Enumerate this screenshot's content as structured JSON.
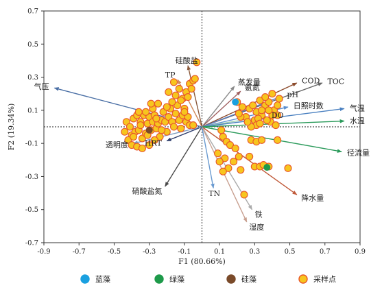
{
  "chart_data": {
    "type": "scatter",
    "title": "",
    "xlabel": "F1 (80.66%)",
    "ylabel": "F2 (19.34%)",
    "xlim": [
      -0.9,
      0.9
    ],
    "ylim": [
      -0.7,
      0.7
    ],
    "xticks": [
      "-0.9",
      "-0.7",
      "-0.5",
      "-0.3",
      "-0.1",
      "0.1",
      "0.3",
      "0.5",
      "0.7",
      "0.9"
    ],
    "xtick_values": [
      -0.9,
      -0.7,
      -0.5,
      -0.3,
      -0.1,
      0.1,
      0.3,
      0.5,
      0.7,
      0.9
    ],
    "yticks": [
      "0.7",
      "0.5",
      "0.3",
      "0.1",
      "-0.1",
      "-0.3",
      "-0.5",
      "-0.7"
    ],
    "ytick_values": [
      0.7,
      0.5,
      0.3,
      0.1,
      -0.1,
      -0.3,
      -0.5,
      -0.7
    ],
    "grid": false,
    "reference_lines": {
      "x": 0,
      "y": 0,
      "style": "dotted"
    },
    "vectors": [
      {
        "label": "气压",
        "x": -0.84,
        "y": 0.235,
        "color": "#4a6fa5"
      },
      {
        "label": "TP",
        "x": -0.138,
        "y": 0.285,
        "color": "#d0895a"
      },
      {
        "label": "硅酸盐",
        "x": -0.08,
        "y": 0.37,
        "color": "#8b5a3c"
      },
      {
        "label": "蒸发量",
        "x": 0.185,
        "y": 0.245,
        "color": "#8a8a8a"
      },
      {
        "label": "氨氮",
        "x": 0.22,
        "y": 0.215,
        "color": "#a06060"
      },
      {
        "label": "COD",
        "x": 0.54,
        "y": 0.265,
        "color": "#8b4a2b"
      },
      {
        "label": "TOC",
        "x": 0.685,
        "y": 0.265,
        "color": "#666666"
      },
      {
        "label": "pH",
        "x": 0.455,
        "y": 0.185,
        "color": "#5a7ec0"
      },
      {
        "label": "日照时数",
        "x": 0.49,
        "y": 0.12,
        "color": "#5a8ed0"
      },
      {
        "label": "DO",
        "x": 0.365,
        "y": 0.065,
        "color": "#a0d0b0"
      },
      {
        "label": "气温",
        "x": 0.81,
        "y": 0.11,
        "color": "#4a80c0"
      },
      {
        "label": "水温",
        "x": 0.81,
        "y": 0.035,
        "color": "#2a9a5a"
      },
      {
        "label": "径流量",
        "x": 0.795,
        "y": -0.15,
        "color": "#2a9a5a"
      },
      {
        "label": "降水量",
        "x": 0.54,
        "y": -0.41,
        "color": "#c05a3a"
      },
      {
        "label": "铁",
        "x": 0.285,
        "y": -0.5,
        "color": "#aaaaaa"
      },
      {
        "label": "湿度",
        "x": 0.255,
        "y": -0.575,
        "color": "#c8a090"
      },
      {
        "label": "TN",
        "x": 0.065,
        "y": -0.37,
        "color": "#6a9ad0"
      },
      {
        "label": "硝酸盐氮",
        "x": -0.21,
        "y": -0.36,
        "color": "#4a4a4a"
      },
      {
        "label": "HRT",
        "x": -0.2,
        "y": -0.085,
        "color": "#2a3a6a"
      },
      {
        "label": "透明度",
        "x": -0.39,
        "y": -0.1,
        "color": "#7a9ac0"
      }
    ],
    "sample_points": [
      [
        -0.43,
        0.03
      ],
      [
        -0.41,
        0.0
      ],
      [
        -0.4,
        -0.05
      ],
      [
        -0.39,
        0.05
      ],
      [
        -0.38,
        -0.03
      ],
      [
        -0.37,
        0.07
      ],
      [
        -0.36,
        -0.02
      ],
      [
        -0.35,
        0.03
      ],
      [
        -0.34,
        -0.07
      ],
      [
        -0.33,
        0.07
      ],
      [
        -0.32,
        -0.04
      ],
      [
        -0.31,
        0.02
      ],
      [
        -0.3,
        0.06
      ],
      [
        -0.29,
        -0.02
      ],
      [
        -0.28,
        0.03
      ],
      [
        -0.27,
        0.07
      ],
      [
        -0.26,
        -0.01
      ],
      [
        -0.25,
        0.02
      ],
      [
        -0.24,
        -0.06
      ],
      [
        -0.23,
        0.04
      ],
      [
        -0.22,
        0.09
      ],
      [
        -0.21,
        0.03
      ],
      [
        -0.2,
        -0.03
      ],
      [
        -0.19,
        0.06
      ],
      [
        -0.18,
        0.11
      ],
      [
        -0.17,
        0.03
      ],
      [
        -0.16,
        0.0
      ],
      [
        -0.15,
        0.08
      ],
      [
        -0.14,
        0.13
      ],
      [
        -0.13,
        0.04
      ],
      [
        -0.12,
        -0.01
      ],
      [
        -0.11,
        0.07
      ],
      [
        -0.1,
        0.11
      ],
      [
        -0.09,
        0.03
      ],
      [
        -0.08,
        0.06
      ],
      [
        -0.07,
        0.01
      ],
      [
        -0.42,
        -0.08
      ],
      [
        -0.4,
        -0.11
      ],
      [
        -0.37,
        -0.12
      ],
      [
        -0.34,
        -0.13
      ],
      [
        -0.3,
        -0.11
      ],
      [
        -0.27,
        -0.08
      ],
      [
        -0.44,
        -0.03
      ],
      [
        -0.39,
        -0.06
      ],
      [
        -0.35,
        0.01
      ],
      [
        -0.32,
        0.09
      ],
      [
        -0.28,
        0.11
      ],
      [
        -0.25,
        0.14
      ],
      [
        -0.23,
        -0.02
      ],
      [
        -0.2,
        0.12
      ],
      [
        -0.17,
        0.15
      ],
      [
        -0.15,
        0.19
      ],
      [
        -0.13,
        0.23
      ],
      [
        -0.11,
        0.17
      ],
      [
        -0.09,
        0.21
      ],
      [
        -0.07,
        0.26
      ],
      [
        -0.05,
        0.28
      ],
      [
        -0.04,
        0.29
      ],
      [
        -0.06,
        0.23
      ],
      [
        -0.08,
        0.18
      ],
      [
        -0.16,
        0.27
      ],
      [
        -0.12,
        0.16
      ],
      [
        -0.19,
        0.21
      ],
      [
        -0.1,
        0.09
      ],
      [
        -0.03,
        0.39
      ],
      [
        -0.05,
        0.01
      ],
      [
        -0.31,
        -0.05
      ],
      [
        -0.29,
        0.14
      ],
      [
        -0.36,
        0.09
      ],
      [
        -0.26,
        0.05
      ],
      [
        0.27,
        0.11
      ],
      [
        0.29,
        0.13
      ],
      [
        0.31,
        0.09
      ],
      [
        0.33,
        0.16
      ],
      [
        0.36,
        0.13
      ],
      [
        0.39,
        0.03
      ],
      [
        0.42,
        0.01
      ],
      [
        0.43,
        0.07
      ],
      [
        0.41,
        0.1
      ],
      [
        0.38,
        0.15
      ],
      [
        0.44,
        0.17
      ],
      [
        0.37,
        0.04
      ],
      [
        0.4,
        0.07
      ],
      [
        0.34,
        0.07
      ],
      [
        0.3,
        0.04
      ],
      [
        0.2,
        0.15
      ],
      [
        0.23,
        0.12
      ],
      [
        0.25,
        0.06
      ],
      [
        0.36,
        0.18
      ],
      [
        0.43,
        0.13
      ],
      [
        0.22,
        0.06
      ],
      [
        0.21,
        0.08
      ],
      [
        0.31,
        0.01
      ],
      [
        0.28,
        0.0
      ],
      [
        0.32,
        0.05
      ],
      [
        0.4,
        0.2
      ],
      [
        0.26,
        0.03
      ],
      [
        0.33,
        0.02
      ],
      [
        0.34,
        0.1
      ],
      [
        0.38,
        0.1
      ],
      [
        0.11,
        -0.02
      ],
      [
        0.12,
        -0.06
      ],
      [
        0.14,
        -0.09
      ],
      [
        0.16,
        -0.11
      ],
      [
        0.19,
        -0.13
      ],
      [
        0.21,
        -0.18
      ],
      [
        0.15,
        -0.25
      ],
      [
        0.13,
        -0.19
      ],
      [
        0.1,
        -0.21
      ],
      [
        0.12,
        -0.27
      ],
      [
        0.22,
        -0.26
      ],
      [
        0.28,
        -0.08
      ],
      [
        0.31,
        -0.09
      ],
      [
        0.34,
        -0.08
      ],
      [
        0.43,
        -0.08
      ],
      [
        0.3,
        -0.24
      ],
      [
        0.33,
        -0.24
      ],
      [
        0.35,
        -0.23
      ],
      [
        0.38,
        -0.24
      ],
      [
        0.49,
        -0.25
      ],
      [
        0.24,
        -0.41
      ],
      [
        0.27,
        -0.18
      ],
      [
        0.09,
        -0.16
      ],
      [
        0.18,
        -0.21
      ]
    ],
    "marked_points": [
      {
        "kind": "蓝藻",
        "x": 0.19,
        "y": 0.15,
        "color": "#1aa0e0"
      },
      {
        "kind": "绿藻",
        "x": 0.37,
        "y": -0.245,
        "color": "#1e9a4a"
      },
      {
        "kind": "硅藻",
        "x": -0.3,
        "y": -0.02,
        "color": "#7a4a2a"
      }
    ],
    "sample_style": {
      "fill": "#f7c51e",
      "stroke": "#e8552a"
    },
    "legend": {
      "placement": "bottom",
      "items": [
        {
          "label": "蓝藻",
          "fill": "#1aa0e0",
          "stroke": "#1aa0e0"
        },
        {
          "label": "绿藻",
          "fill": "#1e9a4a",
          "stroke": "#1e9a4a"
        },
        {
          "label": "硅藻",
          "fill": "#7a4a2a",
          "stroke": "#7a4a2a"
        },
        {
          "label": "采样点",
          "fill": "#f7c51e",
          "stroke": "#e8552a"
        }
      ]
    }
  }
}
